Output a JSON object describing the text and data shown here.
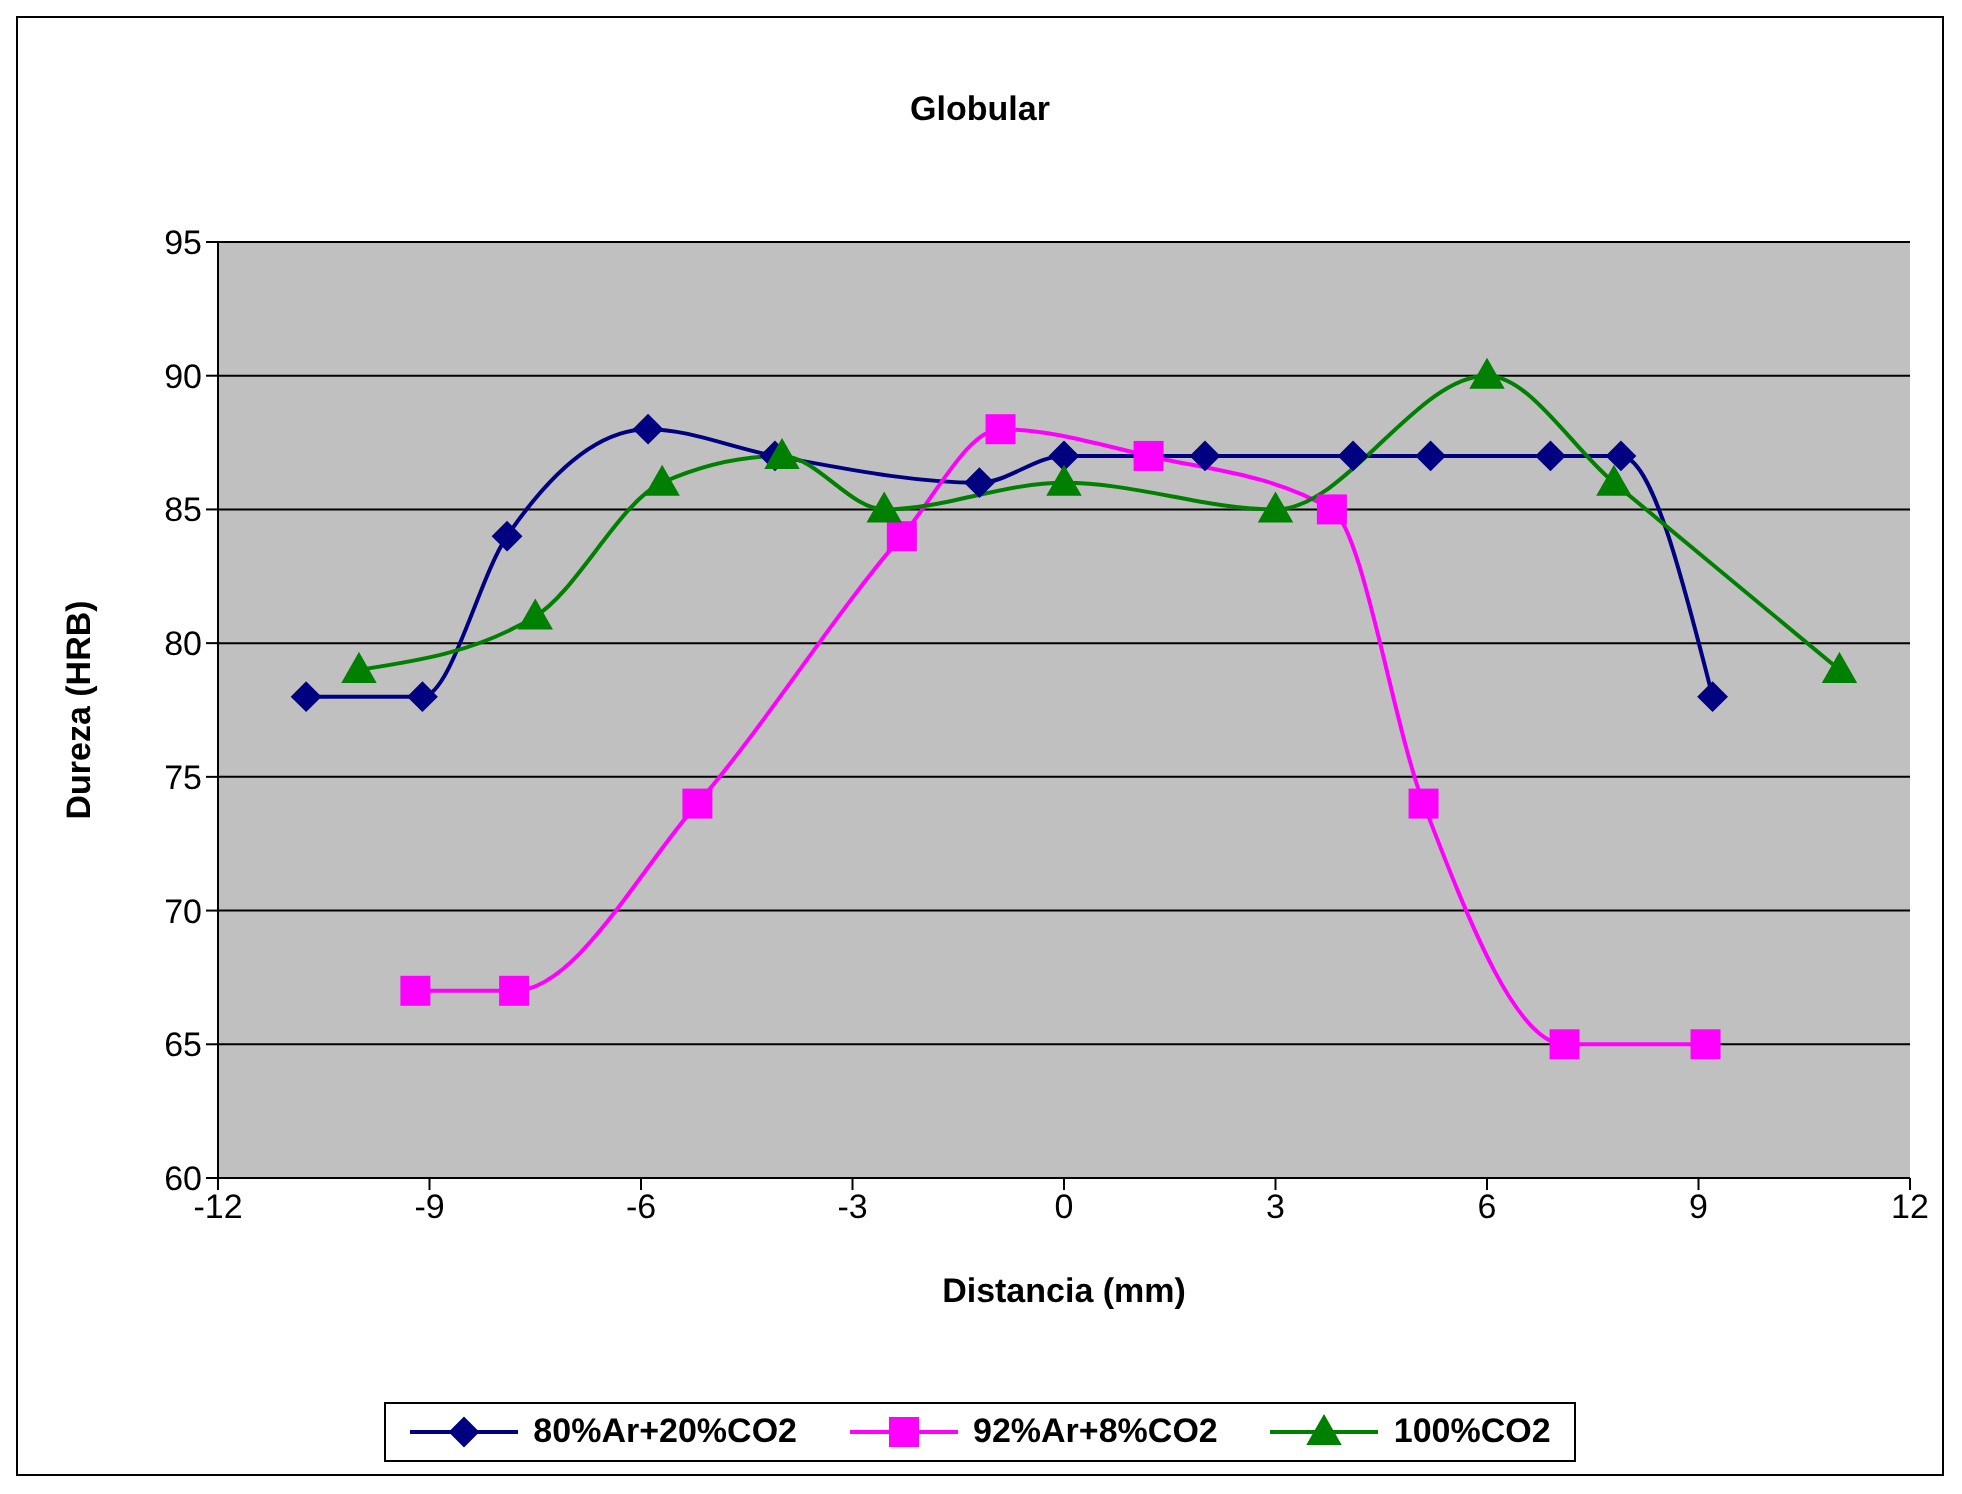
{
  "chart_data": {
    "type": "line",
    "title": "Globular",
    "xlabel": "Distancia (mm)",
    "ylabel": "Dureza (HRB)",
    "xlim": [
      -12,
      12
    ],
    "xticks": [
      -12,
      -9,
      -6,
      -3,
      0,
      3,
      6,
      9,
      12
    ],
    "ylim": [
      60,
      95
    ],
    "yticks": [
      60,
      65,
      70,
      75,
      80,
      85,
      90,
      95
    ],
    "grid": "y",
    "legend": "bottom",
    "series": [
      {
        "name": "80%Ar+20%CO2",
        "color": "#000080",
        "marker": "diamond",
        "x": [
          -10.75,
          -9.1,
          -7.9,
          -5.9,
          -4.1,
          -1.2,
          0,
          2,
          4.1,
          5.2,
          6.9,
          7.9,
          9.2
        ],
        "values": [
          78,
          78,
          84,
          88,
          87,
          86,
          87,
          87,
          87,
          87,
          87,
          87,
          78
        ]
      },
      {
        "name": "92%Ar+8%CO2",
        "color": "#ff00ff",
        "marker": "square",
        "x": [
          -9.2,
          -7.8,
          -5.2,
          -2.3,
          -0.9,
          1.2,
          3.8,
          5.1,
          7.1,
          9.1
        ],
        "values": [
          67,
          67,
          74,
          84,
          88,
          87,
          85,
          74,
          65,
          65
        ]
      },
      {
        "name": "100%CO2",
        "color": "#008000",
        "marker": "triangle",
        "x": [
          -10,
          -7.5,
          -5.7,
          -4,
          -2.55,
          0,
          3,
          6,
          7.8,
          11
        ],
        "values": [
          79,
          81,
          86,
          87,
          85,
          86,
          85,
          90,
          86,
          79
        ]
      }
    ]
  }
}
